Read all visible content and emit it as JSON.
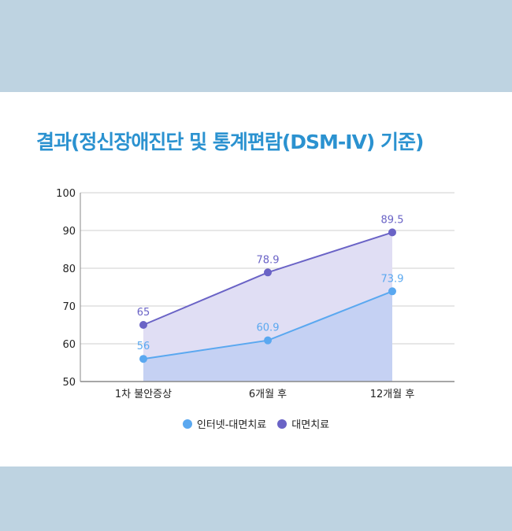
{
  "title": "결과(정신장애진단 및 통계편람(DSM-IV) 기준)",
  "colors": {
    "page_background": "#bed3e1",
    "title": "#2b92d0",
    "series_internet": "#5aa8f0",
    "series_face": "#6a63c6"
  },
  "chart_data": {
    "type": "area",
    "categories": [
      "1차 불안증상",
      "6개월 후",
      "12개월 후"
    ],
    "ylim": [
      50,
      100
    ],
    "yticks": [
      50,
      60,
      70,
      80,
      90,
      100
    ],
    "grid": true,
    "legend_position": "bottom",
    "series": [
      {
        "name": "대면치료",
        "values": [
          65,
          78.9,
          89.5
        ],
        "labels": [
          "65",
          "78.9",
          "89.5"
        ],
        "color": "#6a63c6"
      },
      {
        "name": "인터넷-대면치료",
        "values": [
          56,
          60.9,
          73.9
        ],
        "labels": [
          "56",
          "60.9",
          "73.9"
        ],
        "color": "#5aa8f0"
      }
    ]
  },
  "legend": [
    {
      "label": "인터넷-대면치료",
      "color": "#5aa8f0"
    },
    {
      "label": "대면치료",
      "color": "#6a63c6"
    }
  ]
}
